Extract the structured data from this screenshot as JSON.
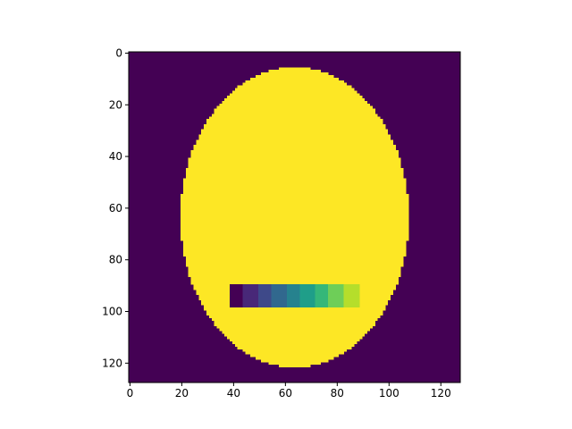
{
  "chart_data": {
    "type": "heatmap",
    "title": "",
    "xlabel": "",
    "ylabel": "",
    "image_shape": [
      128,
      128
    ],
    "origin": "upper",
    "xlim": [
      -0.5,
      127.5
    ],
    "ylim": [
      127.5,
      -0.5
    ],
    "x_ticks": [
      0,
      20,
      40,
      60,
      80,
      100,
      120
    ],
    "y_ticks": [
      0,
      20,
      40,
      60,
      80,
      100,
      120
    ],
    "colormap": "viridis",
    "background_value": 0.0,
    "background_color": "#440154",
    "ellipse": {
      "center": [
        63.5,
        63.5
      ],
      "radius_x": 44,
      "radius_y": 58,
      "value": 1.0,
      "color": "#fde725"
    },
    "bar_blocks": {
      "row_range": [
        90,
        99
      ],
      "blocks": [
        {
          "col_range": [
            39,
            44
          ],
          "value": 0.0,
          "color": "#440154"
        },
        {
          "col_range": [
            44,
            50
          ],
          "value": 0.11,
          "color": "#482878"
        },
        {
          "col_range": [
            50,
            55
          ],
          "value": 0.22,
          "color": "#3e4989"
        },
        {
          "col_range": [
            55,
            61
          ],
          "value": 0.33,
          "color": "#31688e"
        },
        {
          "col_range": [
            61,
            66
          ],
          "value": 0.44,
          "color": "#26828e"
        },
        {
          "col_range": [
            66,
            72
          ],
          "value": 0.56,
          "color": "#1f9e89"
        },
        {
          "col_range": [
            72,
            77
          ],
          "value": 0.67,
          "color": "#35b779"
        },
        {
          "col_range": [
            77,
            83
          ],
          "value": 0.78,
          "color": "#6ece58"
        },
        {
          "col_range": [
            83,
            89
          ],
          "value": 0.89,
          "color": "#b5de2b"
        }
      ]
    },
    "grid": false,
    "legend": "none"
  }
}
